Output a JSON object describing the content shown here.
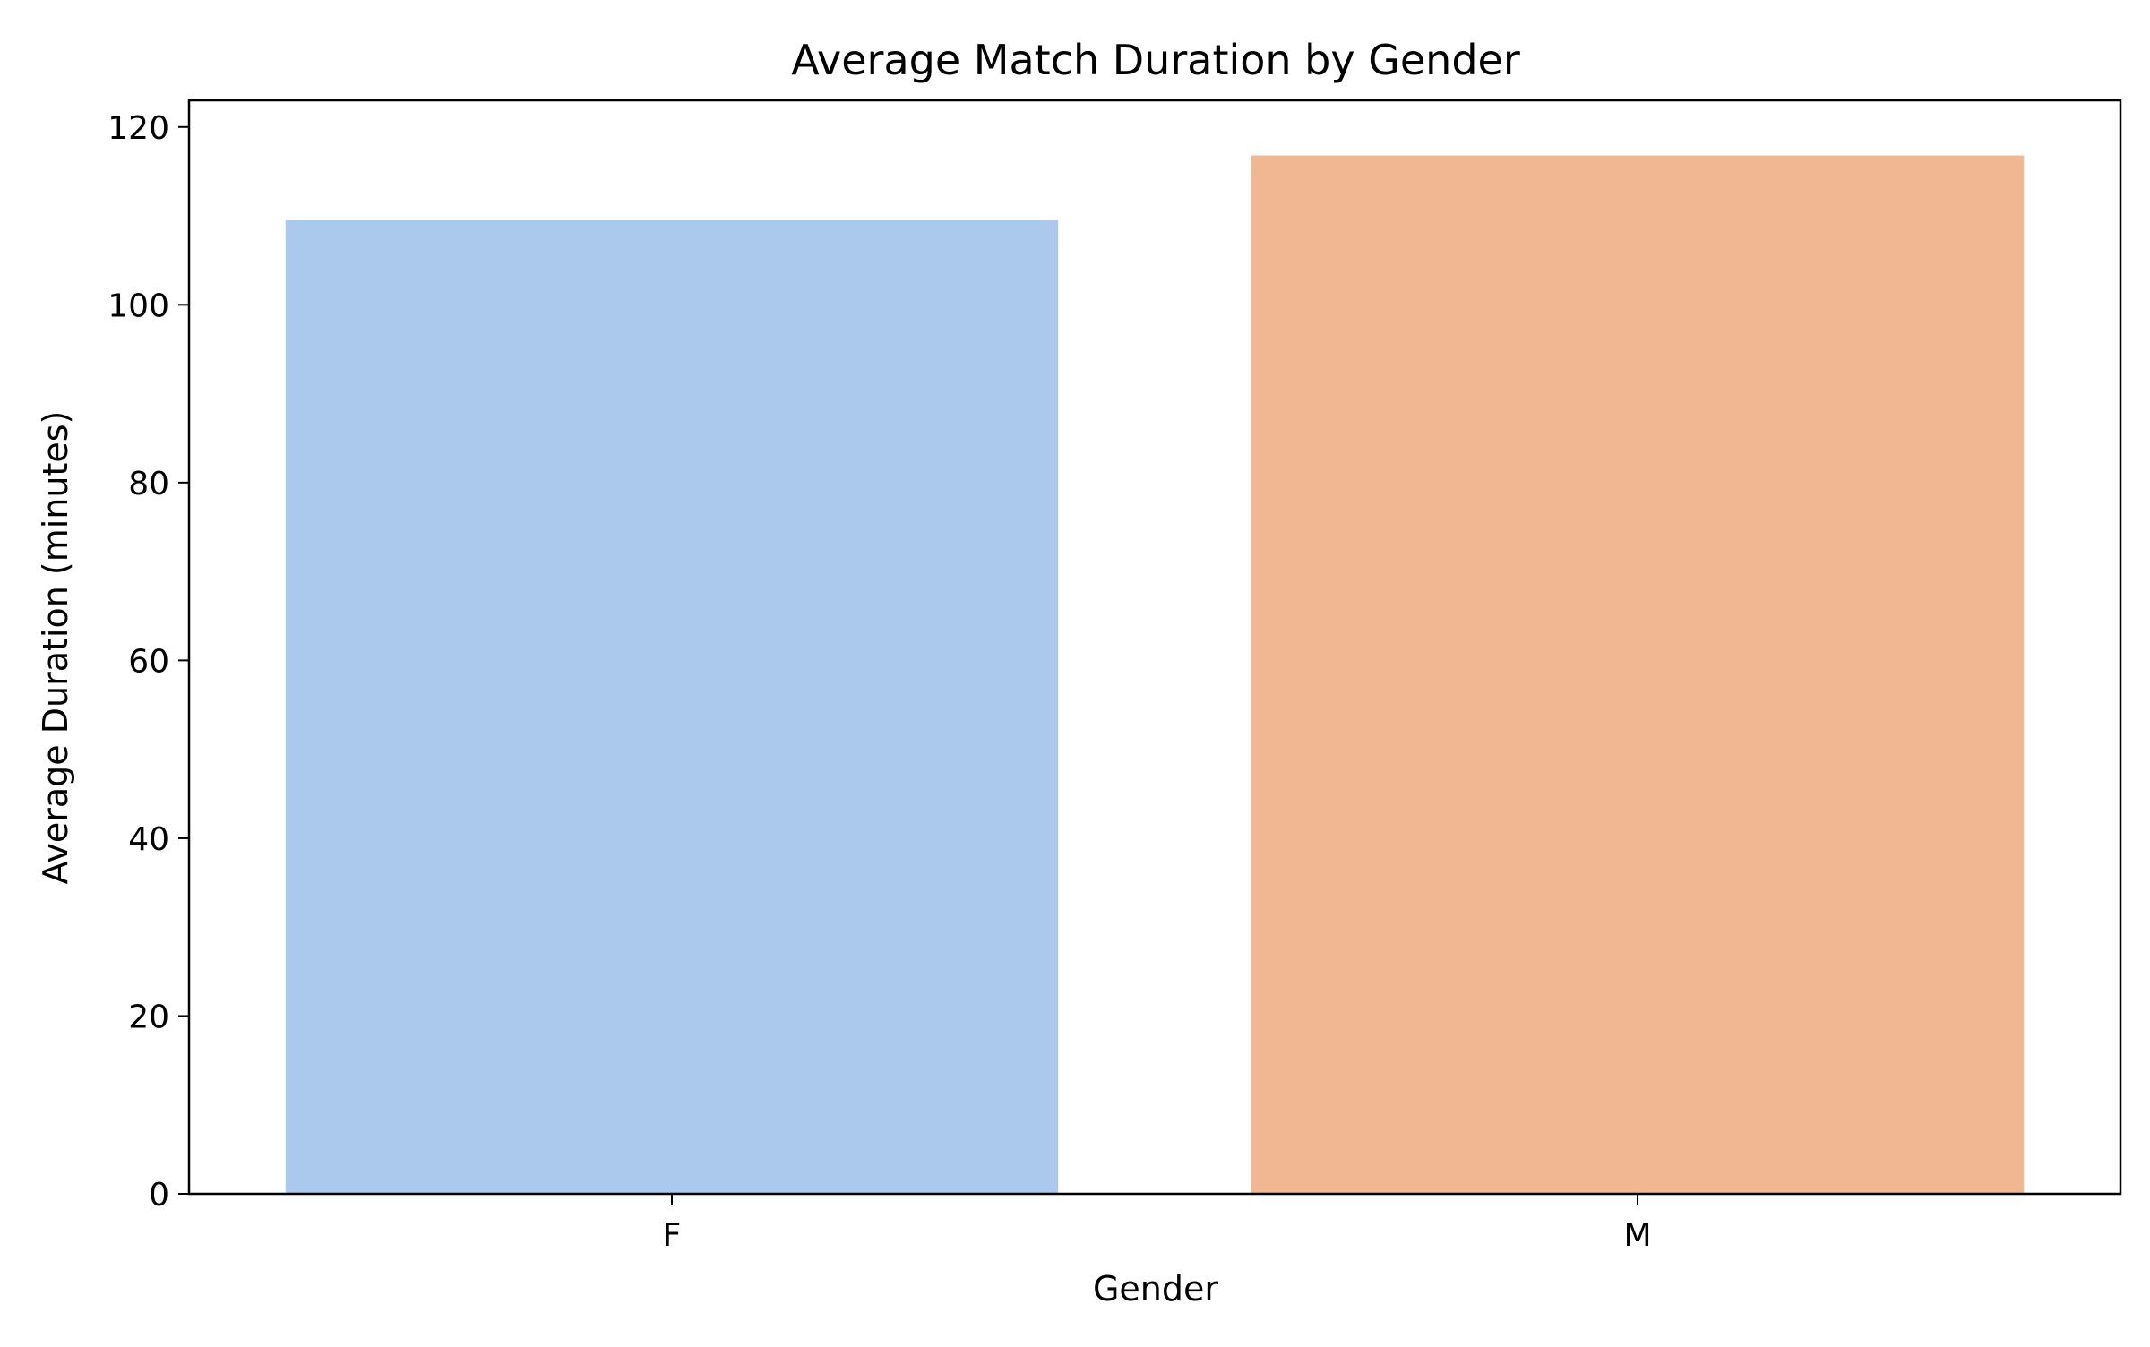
{
  "chart_data": {
    "type": "bar",
    "title": "Average Match Duration by Gender",
    "xlabel": "Gender",
    "ylabel": "Average Duration (minutes)",
    "categories": [
      "F",
      "M"
    ],
    "values": [
      109.5,
      116.8
    ],
    "colors": [
      "#abc9ec",
      "#f0b792"
    ],
    "ylim": [
      0,
      123
    ],
    "yticks": [
      0,
      20,
      40,
      60,
      80,
      100,
      120
    ],
    "grid": false,
    "legend": false
  }
}
